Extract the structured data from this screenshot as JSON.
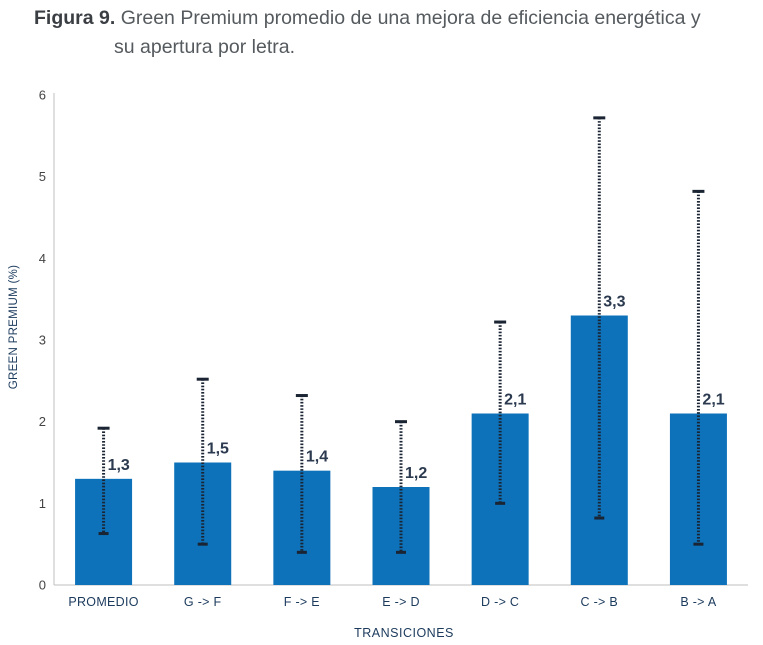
{
  "caption": {
    "figure_label": "Figura 9.",
    "title_line1": "Green Premium promedio de una mejora de eficiencia energética y",
    "title_line2": "su apertura por letra."
  },
  "colors": {
    "bar": "#0d72b9",
    "errorbar": "#1a2433",
    "axis": "#bfbfbf"
  },
  "chart_data": {
    "type": "bar",
    "title": "Green Premium promedio de una mejora de eficiencia energética y su apertura por letra.",
    "xlabel": "TRANSICIONES",
    "ylabel": "GREEN PREMIUM (%)",
    "ylim": [
      0,
      6
    ],
    "yticks": [
      0,
      1,
      2,
      3,
      4,
      5,
      6
    ],
    "categories": [
      "PROMEDIO",
      "G -> F",
      "F -> E",
      "E -> D",
      "D -> C",
      "C -> B",
      "B -> A"
    ],
    "values": [
      1.3,
      1.5,
      1.4,
      1.2,
      2.1,
      3.3,
      2.1
    ],
    "data_labels": [
      "1,3",
      "1,5",
      "1,4",
      "1,2",
      "2,1",
      "3,3",
      "2,1"
    ],
    "error_low": [
      0.63,
      0.5,
      0.4,
      0.4,
      1.0,
      0.82,
      0.5
    ],
    "error_high": [
      1.92,
      2.52,
      2.32,
      2.0,
      3.22,
      5.72,
      4.82
    ],
    "grid": false,
    "legend": "none"
  }
}
